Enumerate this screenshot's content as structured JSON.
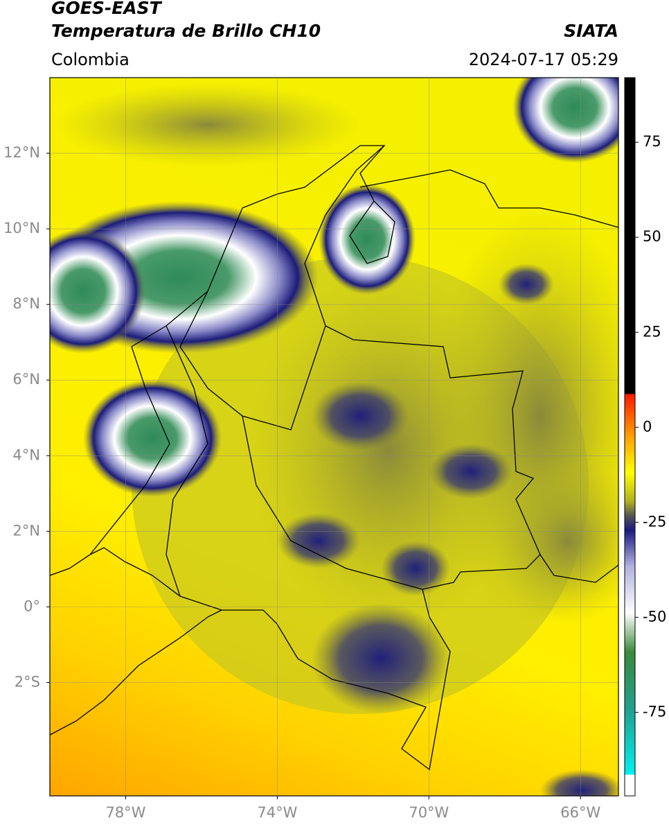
{
  "header": {
    "agency": "GOES-EAST",
    "product": "Temperatura de Brillo CH10",
    "source": "SIATA",
    "region": "Colombia",
    "datetime": "2024-07-17 05:29"
  },
  "map": {
    "xlim": [
      -80,
      -65
    ],
    "ylim": [
      -5,
      14
    ],
    "xticks": [
      {
        "value": -78,
        "label": "78°W"
      },
      {
        "value": -74,
        "label": "74°W"
      },
      {
        "value": -70,
        "label": "70°W"
      },
      {
        "value": -66,
        "label": "66°W"
      }
    ],
    "yticks": [
      {
        "value": 12,
        "label": "12°N"
      },
      {
        "value": 10,
        "label": "10°N"
      },
      {
        "value": 8,
        "label": "8°N"
      },
      {
        "value": 6,
        "label": "6°N"
      },
      {
        "value": 4,
        "label": "4°N"
      },
      {
        "value": 2,
        "label": "2°N"
      },
      {
        "value": 0,
        "label": "0°"
      },
      {
        "value": -2,
        "label": "2°S"
      }
    ]
  },
  "colorbar": {
    "lim": [
      -97,
      92
    ],
    "ticks": [
      75,
      50,
      25,
      0,
      -25,
      -50,
      -75
    ]
  }
}
